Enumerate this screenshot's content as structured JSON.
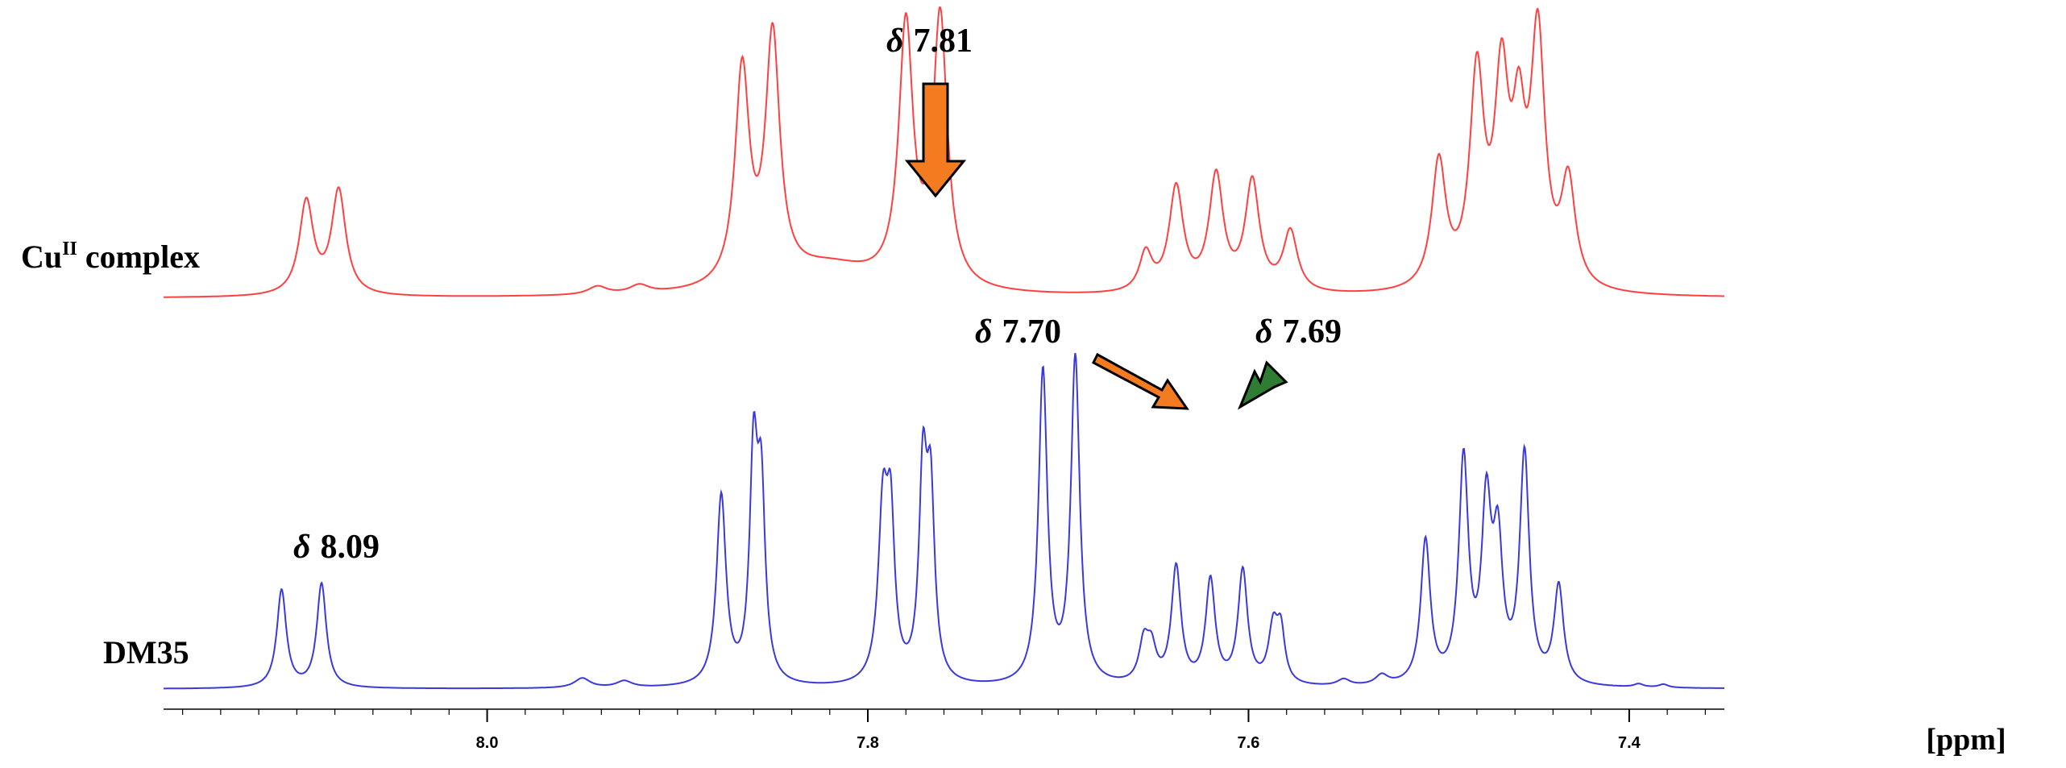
{
  "chart_data": {
    "type": "line",
    "xlabel": "[ppm]",
    "x_reversed": true,
    "xlim": [
      8.17,
      7.35
    ],
    "x_ticks": [
      {
        "value": 8.0,
        "label": "8.0"
      },
      {
        "value": 7.8,
        "label": "7.8"
      },
      {
        "value": 7.6,
        "label": "7.6"
      },
      {
        "value": 7.4,
        "label": "7.4"
      }
    ],
    "grid": false,
    "series": [
      {
        "name": "Cu",
        "name_sup": "II",
        "name_suffix": " complex",
        "color": "#ff4040",
        "baseline": 0.0,
        "peaks": [
          {
            "x": 8.095,
            "h": 0.34,
            "w": 0.0045
          },
          {
            "x": 8.078,
            "h": 0.38,
            "w": 0.0045
          },
          {
            "x": 7.942,
            "h": 0.03,
            "w": 0.006
          },
          {
            "x": 7.92,
            "h": 0.03,
            "w": 0.006
          },
          {
            "x": 7.866,
            "h": 0.78,
            "w": 0.0045
          },
          {
            "x": 7.85,
            "h": 0.89,
            "w": 0.0045
          },
          {
            "x": 7.78,
            "h": 0.94,
            "w": 0.0045
          },
          {
            "x": 7.762,
            "h": 0.98,
            "w": 0.0045
          },
          {
            "x": 7.82,
            "h": 0.1,
            "w": 0.03
          },
          {
            "x": 7.654,
            "h": 0.14,
            "w": 0.004
          },
          {
            "x": 7.638,
            "h": 0.38,
            "w": 0.0045
          },
          {
            "x": 7.617,
            "h": 0.42,
            "w": 0.0045
          },
          {
            "x": 7.598,
            "h": 0.4,
            "w": 0.0045
          },
          {
            "x": 7.578,
            "h": 0.22,
            "w": 0.0045
          },
          {
            "x": 7.5,
            "h": 0.46,
            "w": 0.0045
          },
          {
            "x": 7.48,
            "h": 0.76,
            "w": 0.0045
          },
          {
            "x": 7.467,
            "h": 0.72,
            "w": 0.0045
          },
          {
            "x": 7.458,
            "h": 0.5,
            "w": 0.004
          },
          {
            "x": 7.448,
            "h": 0.9,
            "w": 0.0045
          },
          {
            "x": 7.432,
            "h": 0.38,
            "w": 0.0045
          }
        ]
      },
      {
        "name": "DM35",
        "color": "#3a3adb",
        "baseline": 0.0,
        "peaks": [
          {
            "x": 8.108,
            "h": 0.3,
            "w": 0.003
          },
          {
            "x": 8.087,
            "h": 0.32,
            "w": 0.003
          },
          {
            "x": 7.95,
            "h": 0.03,
            "w": 0.005
          },
          {
            "x": 7.928,
            "h": 0.02,
            "w": 0.005
          },
          {
            "x": 7.877,
            "h": 0.58,
            "w": 0.003
          },
          {
            "x": 7.86,
            "h": 0.67,
            "w": 0.0025
          },
          {
            "x": 7.856,
            "h": 0.55,
            "w": 0.0025
          },
          {
            "x": 7.792,
            "h": 0.52,
            "w": 0.003
          },
          {
            "x": 7.788,
            "h": 0.45,
            "w": 0.0025
          },
          {
            "x": 7.771,
            "h": 0.62,
            "w": 0.0025
          },
          {
            "x": 7.767,
            "h": 0.54,
            "w": 0.0025
          },
          {
            "x": 7.708,
            "h": 0.96,
            "w": 0.0028
          },
          {
            "x": 7.691,
            "h": 1.0,
            "w": 0.0028
          },
          {
            "x": 7.655,
            "h": 0.12,
            "w": 0.003
          },
          {
            "x": 7.651,
            "h": 0.1,
            "w": 0.003
          },
          {
            "x": 7.638,
            "h": 0.36,
            "w": 0.003
          },
          {
            "x": 7.62,
            "h": 0.32,
            "w": 0.003
          },
          {
            "x": 7.603,
            "h": 0.35,
            "w": 0.003
          },
          {
            "x": 7.587,
            "h": 0.17,
            "w": 0.003
          },
          {
            "x": 7.583,
            "h": 0.15,
            "w": 0.0025
          },
          {
            "x": 7.55,
            "h": 0.02,
            "w": 0.004
          },
          {
            "x": 7.53,
            "h": 0.03,
            "w": 0.004
          },
          {
            "x": 7.507,
            "h": 0.44,
            "w": 0.003
          },
          {
            "x": 7.487,
            "h": 0.68,
            "w": 0.003
          },
          {
            "x": 7.475,
            "h": 0.52,
            "w": 0.003
          },
          {
            "x": 7.469,
            "h": 0.4,
            "w": 0.003
          },
          {
            "x": 7.455,
            "h": 0.7,
            "w": 0.003
          },
          {
            "x": 7.437,
            "h": 0.3,
            "w": 0.003
          },
          {
            "x": 7.395,
            "h": 0.01,
            "w": 0.003
          },
          {
            "x": 7.382,
            "h": 0.01,
            "w": 0.003
          }
        ]
      }
    ],
    "annotations": [
      {
        "text": "7.81",
        "symbol": "δ",
        "series": "Cu complex",
        "arrow": "down",
        "color": "#f47b20"
      },
      {
        "text": "7.70",
        "symbol": "δ",
        "series": "DM35",
        "arrow": "diagonal-down-right",
        "color": "#f47b20"
      },
      {
        "text": "7.69",
        "symbol": "δ",
        "series": "DM35",
        "arrow": "diagonal-down-left",
        "color": "#2e7d32"
      },
      {
        "text": "8.09",
        "symbol": "δ",
        "series": "DM35",
        "arrow": "none"
      }
    ]
  }
}
